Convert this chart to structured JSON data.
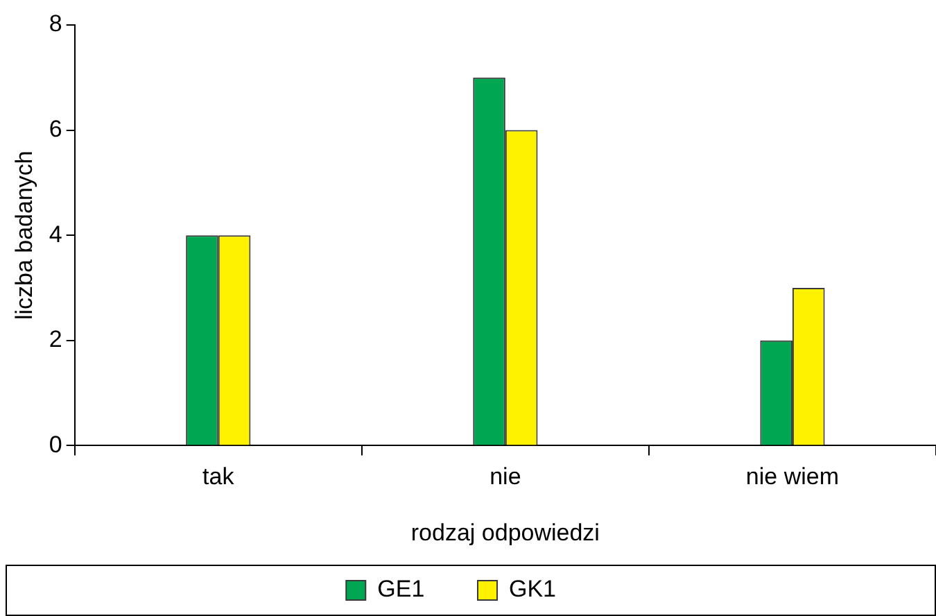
{
  "chart_data": {
    "type": "bar",
    "xlabel": "rodzaj odpowiedzi",
    "ylabel": "liczba badanych",
    "categories": [
      "tak",
      "nie",
      "nie wiem"
    ],
    "series": [
      {
        "name": "GE1",
        "color": "#00a651",
        "values": [
          4,
          7,
          2
        ]
      },
      {
        "name": "GK1",
        "color": "#fff200",
        "values": [
          4,
          6,
          3
        ]
      }
    ],
    "ylim": [
      0,
      8
    ],
    "yticks": [
      0,
      2,
      4,
      6,
      8
    ],
    "grid": false,
    "legend": "bottom"
  }
}
